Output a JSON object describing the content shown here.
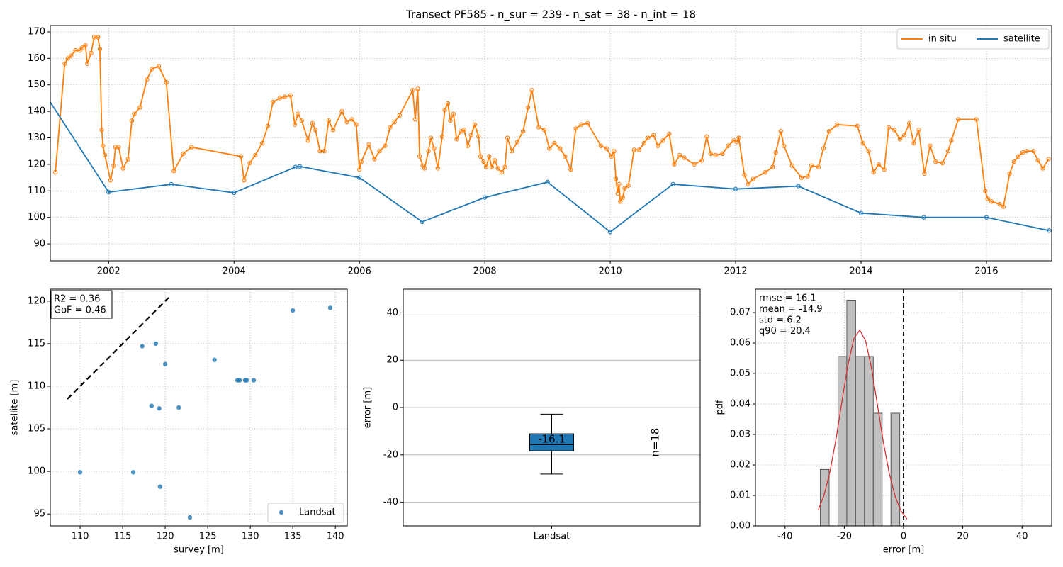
{
  "chart_data": [
    {
      "type": "line",
      "title": "Transect PF585 - n_sur = 239 - n_sat = 38 - n_int = 18",
      "xlim": [
        2001.07,
        2017.04
      ],
      "ylim": [
        83.6,
        172.4
      ],
      "xticks": [
        2002,
        2004,
        2006,
        2008,
        2010,
        2012,
        2014,
        2016
      ],
      "yticks": [
        90,
        100,
        110,
        120,
        130,
        140,
        150,
        160,
        170
      ],
      "grid": true,
      "grid_style": "dotted",
      "legend": "upper right",
      "series": [
        {
          "name": "in situ",
          "color": "#ff7f0e",
          "x": [
            2001.15,
            2001.3,
            2001.35,
            2001.4,
            2001.47,
            2001.54,
            2001.58,
            2001.63,
            2001.66,
            2001.72,
            2001.77,
            2001.83,
            2001.86,
            2001.89,
            2001.91,
            2001.94,
            2002.03,
            2002.08,
            2002.11,
            2002.16,
            2002.23,
            2002.31,
            2002.37,
            2002.41,
            2002.5,
            2002.61,
            2002.69,
            2002.8,
            2002.92,
            2003.04,
            2003.19,
            2003.32,
            2004.11,
            2004.16,
            2004.25,
            2004.34,
            2004.45,
            2004.54,
            2004.62,
            2004.73,
            2004.81,
            2004.9,
            2004.97,
            2005.02,
            2005.08,
            2005.18,
            2005.25,
            2005.3,
            2005.37,
            2005.44,
            2005.51,
            2005.58,
            2005.72,
            2005.8,
            2005.88,
            2005.95,
            2006.0,
            2006.03,
            2006.15,
            2006.24,
            2006.32,
            2006.41,
            2006.49,
            2006.56,
            2006.64,
            2006.85,
            2006.89,
            2006.93,
            2006.96,
            2007.01,
            2007.04,
            2007.1,
            2007.14,
            2007.19,
            2007.25,
            2007.32,
            2007.36,
            2007.41,
            2007.45,
            2007.5,
            2007.55,
            2007.62,
            2007.67,
            2007.73,
            2007.78,
            2007.84,
            2007.9,
            2007.93,
            2007.98,
            2008.02,
            2008.07,
            2008.11,
            2008.16,
            2008.21,
            2008.27,
            2008.32,
            2008.36,
            2008.43,
            2008.52,
            2008.61,
            2008.69,
            2008.75,
            2008.86,
            2008.95,
            2009.03,
            2009.11,
            2009.2,
            2009.28,
            2009.37,
            2009.45,
            2009.54,
            2009.64,
            2009.85,
            2009.94,
            2010.02,
            2010.06,
            2010.09,
            2010.12,
            2010.14,
            2010.16,
            2010.2,
            2010.23,
            2010.29,
            2010.38,
            2010.46,
            2010.54,
            2010.6,
            2010.69,
            2010.76,
            2010.84,
            2010.94,
            2011.02,
            2011.11,
            2011.18,
            2011.34,
            2011.46,
            2011.54,
            2011.6,
            2011.68,
            2011.79,
            2011.88,
            2011.97,
            2012.02,
            2012.05,
            2012.14,
            2012.2,
            2012.28,
            2012.47,
            2012.59,
            2012.64,
            2012.72,
            2012.77,
            2012.9,
            2013.05,
            2013.15,
            2013.21,
            2013.32,
            2013.4,
            2013.49,
            2013.62,
            2013.94,
            2014.03,
            2014.12,
            2014.2,
            2014.28,
            2014.37,
            2014.44,
            2014.53,
            2014.62,
            2014.69,
            2014.77,
            2014.84,
            2014.92,
            2015.01,
            2015.1,
            2015.19,
            2015.3,
            2015.39,
            2015.44,
            2015.55,
            2015.84,
            2015.98,
            2016.02,
            2016.08,
            2016.21,
            2016.27,
            2016.37,
            2016.44,
            2016.51,
            2016.58,
            2016.64,
            2016.75,
            2016.82,
            2016.9,
            2016.99
          ],
          "values": [
            117,
            158,
            160,
            161,
            163,
            163,
            164,
            165,
            158,
            162,
            168,
            168,
            163.5,
            133,
            127,
            123.5,
            114,
            119.5,
            126.5,
            126.5,
            118.5,
            122,
            136.5,
            139,
            141.5,
            152,
            156,
            157,
            151,
            117.5,
            124,
            126.5,
            123,
            114,
            120.5,
            123.5,
            128,
            134.5,
            143.5,
            145,
            145.5,
            146,
            135,
            139,
            136.5,
            129,
            135.5,
            133,
            125,
            125,
            136.5,
            133,
            140,
            136,
            137,
            135,
            118,
            121,
            127.5,
            122,
            125,
            127,
            134,
            136,
            138.5,
            148,
            137,
            148.5,
            123,
            119.5,
            118.5,
            125,
            130,
            126,
            118.5,
            130.5,
            140.5,
            143,
            136.5,
            139,
            129.5,
            132.5,
            133,
            127,
            131,
            135,
            130.5,
            123,
            121,
            119,
            123,
            119,
            121.5,
            118.5,
            117,
            119,
            130,
            125,
            128.5,
            132.5,
            141.5,
            148,
            134,
            133,
            126,
            128,
            126,
            123,
            118,
            133.5,
            135,
            135.5,
            127,
            126,
            123,
            125,
            114.5,
            109,
            112.5,
            106,
            107.5,
            111,
            112,
            125.5,
            125.5,
            128,
            130,
            131,
            127,
            129,
            131.5,
            120,
            123.5,
            122.5,
            120,
            121.5,
            130.5,
            124,
            123.5,
            124,
            127,
            129,
            128.5,
            130,
            116,
            112.5,
            114.5,
            117,
            119,
            124.5,
            132.5,
            127,
            119.5,
            115,
            115.5,
            119.5,
            119,
            126,
            132.5,
            135,
            134.5,
            128,
            125,
            117,
            120,
            118,
            134,
            133,
            129.5,
            131,
            135.5,
            128,
            133,
            116.5,
            127,
            121,
            120.5,
            125,
            129,
            137,
            137,
            110,
            107,
            106,
            105,
            104,
            116.5,
            121,
            123,
            124.5,
            125,
            125,
            121.5,
            118.5,
            122
          ]
        },
        {
          "name": "satellite",
          "color": "#1f77b4",
          "x": [
            2001.0,
            2002.0,
            2003.0,
            2004.0,
            2004.98,
            2005.05,
            2006.0,
            2007.0,
            2008.0,
            2009.0,
            2010.0,
            2011.0,
            2012.0,
            2013.0,
            2014.0,
            2015.0,
            2016.0,
            2017.0
          ],
          "values": [
            146,
            109.5,
            112.5,
            109.3,
            119,
            119.2,
            115,
            98.3,
            107.5,
            113.3,
            94.5,
            112.5,
            110.7,
            111.8,
            101.6,
            100,
            100,
            95
          ]
        }
      ]
    },
    {
      "type": "scatter",
      "xlabel": "survey [m]",
      "ylabel": "satellite [m]",
      "xlim": [
        106.5,
        141.4
      ],
      "ylim": [
        93.6,
        121.4
      ],
      "xticks": [
        110,
        115,
        120,
        125,
        130,
        135,
        140
      ],
      "yticks": [
        95,
        100,
        105,
        110,
        115,
        120
      ],
      "grid": true,
      "grid_style": "dotted",
      "legend": "lower right",
      "annotation": [
        "R2 = 0.36",
        "GoF = 0.46"
      ],
      "reference_line": {
        "x": [
          108.5,
          120.4
        ],
        "values": [
          108.5,
          120.4
        ]
      },
      "series": [
        {
          "name": "Landsat",
          "color": "#1f77b4",
          "x": [
            110,
            116.25,
            119.4,
            122.9,
            117.3,
            118.9,
            120,
            118.4,
            119.3,
            121.6,
            125.8,
            128.5,
            128.75,
            129.4,
            129.6,
            130.4,
            135,
            139.4
          ],
          "values": [
            99.9,
            99.9,
            98.2,
            94.6,
            114.7,
            115,
            112.6,
            107.7,
            107.4,
            107.5,
            113.1,
            110.7,
            110.7,
            110.7,
            110.7,
            110.7,
            118.9,
            119.2
          ]
        }
      ]
    },
    {
      "type": "box",
      "ylabel": "error [m]",
      "categories": [
        "Landsat"
      ],
      "ylim": [
        -50,
        50
      ],
      "yticks": [
        -40,
        -20,
        0,
        20,
        40
      ],
      "grid": true,
      "grid_style": "solid",
      "color": "#1f77b4",
      "boxes": [
        {
          "whisker_low": -28.1,
          "q1": -18.3,
          "median": -15.6,
          "q3": -11.1,
          "whisker_high": -2.8
        }
      ],
      "annotations": [
        "-16.1",
        "n=18"
      ]
    },
    {
      "type": "histogram",
      "xlabel": "error [m]",
      "ylabel": "pdf",
      "xlim": [
        -50,
        50
      ],
      "ylim": [
        0,
        0.0777
      ],
      "xticks": [
        -40,
        -20,
        0,
        20,
        40
      ],
      "yticks": [
        {
          "value": 0,
          "label": "0.00"
        },
        {
          "value": 0.01,
          "label": "0.01"
        },
        {
          "value": 0.02,
          "label": "0.02"
        },
        {
          "value": 0.03,
          "label": "0.03"
        },
        {
          "value": 0.04,
          "label": "0.04"
        },
        {
          "value": 0.05,
          "label": "0.05"
        },
        {
          "value": 0.06,
          "label": "0.06"
        },
        {
          "value": 0.07,
          "label": "0.07"
        }
      ],
      "grid": true,
      "grid_style": "dotted",
      "color": "#c0c0c0",
      "bins": [
        -28.1,
        -25.12,
        -22.14,
        -19.16,
        -16.18,
        -13.2,
        -10.22,
        -7.24,
        -4.26,
        -1.28
      ],
      "values": [
        0.0185,
        0,
        0.0556,
        0.0741,
        0.0556,
        0.0556,
        0.037,
        0,
        0.037
      ],
      "curve": {
        "color": "#d62728",
        "x": [
          -28.8,
          -26.8,
          -24.8,
          -22.8,
          -20.8,
          -18.8,
          -16.8,
          -14.8,
          -12.8,
          -10.8,
          -8.8,
          -6.8,
          -4.8,
          -2.8,
          -0.8,
          1.2
        ],
        "values": [
          0.0052,
          0.0102,
          0.018,
          0.0285,
          0.0409,
          0.0527,
          0.0614,
          0.0643,
          0.0607,
          0.0517,
          0.0396,
          0.0274,
          0.0171,
          0.0096,
          0.0048,
          0.0022
        ]
      },
      "vline": 0,
      "annotation": [
        "rmse = 16.1",
        "mean = -14.9",
        "std = 6.2",
        "q90 = 20.4"
      ]
    }
  ]
}
